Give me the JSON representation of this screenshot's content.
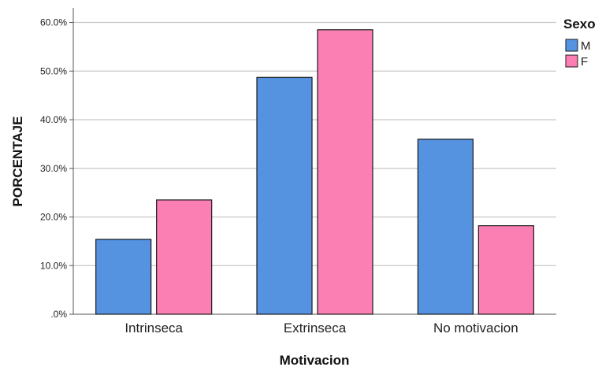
{
  "chart_data": {
    "type": "bar",
    "xlabel": "Motivacion",
    "ylabel": "PORCENTAJE",
    "ylim": [
      0,
      63
    ],
    "yticks": [
      ".0%",
      "10.0%",
      "20.0%",
      "30.0%",
      "40.0%",
      "50.0%",
      "60.0%"
    ],
    "ytick_values": [
      0,
      10,
      20,
      30,
      40,
      50,
      60
    ],
    "grid": true,
    "legend_position": "top-right",
    "legend_title": "Sexo",
    "categories": [
      "Intrinseca",
      "Extrinseca",
      "No motivacion"
    ],
    "series": [
      {
        "name": "M",
        "color": "#5592e0",
        "values": [
          15.4,
          48.7,
          36.0
        ]
      },
      {
        "name": "F",
        "color": "#fc7fb4",
        "values": [
          23.5,
          58.5,
          18.2
        ]
      }
    ]
  }
}
